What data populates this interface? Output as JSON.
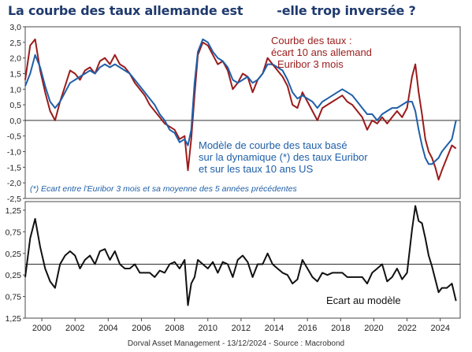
{
  "title": "La courbe des taux allemande est        -elle trop inversée ?",
  "footer": "Dorval Asset Management    -   13/12/2024   -   Source : Macrobond",
  "colors": {
    "curve": "#9b1b1b",
    "model": "#1f5fa8",
    "gap": "#111111",
    "frame": "#4a4a4a",
    "zero": "#111111",
    "grid": "#dddddd",
    "title": "#1f3a6d"
  },
  "chart_data": [
    {
      "type": "line",
      "ylim": [
        -2.5,
        3.0
      ],
      "yticks": [
        "3,0",
        "2,5",
        "2,0",
        "1,5",
        "1,0",
        "0,5",
        "0,0",
        "-0,5",
        "-1,0",
        "-1,5",
        "-2,0",
        "-2,5"
      ],
      "ytick_values": [
        3.0,
        2.5,
        2.0,
        1.5,
        1.0,
        0.5,
        0.0,
        -0.5,
        -1.0,
        -1.5,
        -2.0,
        -2.5
      ],
      "xlim": [
        1999.0,
        2025.2
      ],
      "annotations": {
        "curve_label": [
          "Courbe des taux :",
          "écart 10 ans allemand",
          "- Euribor 3 mois"
        ],
        "model_label": [
          "Modèle de courbe des taux basé",
          "sur la dynamique (*) des taux Euribor",
          "et sur les taux 10 ans US"
        ],
        "footnote": "(*) Ecart entre l'Euribor 3 mois et sa moyenne des 5 années précédentes"
      },
      "series": [
        {
          "name": "Courbe des taux : écart 10 ans allemand - Euribor 3 mois",
          "color": "#9b1b1b",
          "x": [
            1999.0,
            1999.3,
            1999.6,
            1999.9,
            2000.2,
            2000.5,
            2000.8,
            2001.1,
            2001.4,
            2001.7,
            2002.0,
            2002.3,
            2002.6,
            2002.9,
            2003.2,
            2003.5,
            2003.8,
            2004.1,
            2004.4,
            2004.7,
            2005.0,
            2005.3,
            2005.6,
            2005.9,
            2006.2,
            2006.5,
            2006.8,
            2007.1,
            2007.4,
            2007.7,
            2008.0,
            2008.3,
            2008.6,
            2008.8,
            2009.0,
            2009.2,
            2009.4,
            2009.7,
            2010.0,
            2010.3,
            2010.6,
            2010.9,
            2011.2,
            2011.5,
            2011.8,
            2012.1,
            2012.4,
            2012.7,
            2013.0,
            2013.3,
            2013.6,
            2013.9,
            2014.2,
            2014.5,
            2014.8,
            2015.1,
            2015.4,
            2015.7,
            2016.0,
            2016.3,
            2016.6,
            2016.9,
            2017.2,
            2017.5,
            2017.8,
            2018.1,
            2018.4,
            2018.7,
            2019.0,
            2019.3,
            2019.6,
            2019.9,
            2020.2,
            2020.5,
            2020.8,
            2021.1,
            2021.4,
            2021.7,
            2022.0,
            2022.3,
            2022.5,
            2022.7,
            2022.9,
            2023.1,
            2023.3,
            2023.5,
            2023.7,
            2023.9,
            2024.1,
            2024.4,
            2024.7,
            2024.95
          ],
          "y": [
            1.3,
            2.4,
            2.6,
            1.6,
            0.9,
            0.3,
            0.0,
            0.6,
            1.1,
            1.6,
            1.5,
            1.3,
            1.6,
            1.7,
            1.5,
            1.9,
            2.0,
            1.8,
            2.1,
            1.8,
            1.7,
            1.5,
            1.2,
            1.0,
            0.8,
            0.5,
            0.3,
            0.1,
            -0.1,
            -0.2,
            -0.3,
            -0.6,
            -0.5,
            -1.6,
            -0.6,
            0.8,
            2.1,
            2.5,
            2.4,
            2.1,
            1.8,
            1.9,
            1.6,
            1.0,
            1.2,
            1.5,
            1.4,
            0.9,
            1.3,
            1.5,
            2.0,
            1.8,
            1.6,
            1.4,
            1.1,
            0.5,
            0.4,
            0.9,
            0.6,
            0.3,
            0.0,
            0.4,
            0.5,
            0.6,
            0.7,
            0.8,
            0.6,
            0.5,
            0.3,
            0.1,
            -0.3,
            0.0,
            -0.1,
            0.1,
            -0.1,
            0.1,
            0.3,
            0.1,
            0.4,
            1.4,
            1.8,
            0.9,
            0.2,
            -0.6,
            -1.0,
            -1.2,
            -1.5,
            -1.9,
            -1.6,
            -1.2,
            -0.8,
            -0.9
          ]
        },
        {
          "name": "Modèle de courbe des taux basé sur la dynamique (*) des taux Euribor et sur les taux 10 ans US",
          "color": "#1f5fa8",
          "x": [
            1999.0,
            1999.3,
            1999.6,
            1999.9,
            2000.2,
            2000.5,
            2000.8,
            2001.1,
            2001.4,
            2001.7,
            2002.0,
            2002.3,
            2002.6,
            2002.9,
            2003.2,
            2003.5,
            2003.8,
            2004.1,
            2004.4,
            2004.7,
            2005.0,
            2005.3,
            2005.6,
            2005.9,
            2006.2,
            2006.5,
            2006.8,
            2007.1,
            2007.4,
            2007.7,
            2008.0,
            2008.3,
            2008.6,
            2008.8,
            2009.0,
            2009.2,
            2009.4,
            2009.7,
            2010.0,
            2010.3,
            2010.6,
            2010.9,
            2011.2,
            2011.5,
            2011.8,
            2012.1,
            2012.4,
            2012.7,
            2013.0,
            2013.3,
            2013.6,
            2013.9,
            2014.2,
            2014.5,
            2014.8,
            2015.1,
            2015.4,
            2015.7,
            2016.0,
            2016.3,
            2016.6,
            2016.9,
            2017.2,
            2017.5,
            2017.8,
            2018.1,
            2018.4,
            2018.7,
            2019.0,
            2019.3,
            2019.6,
            2019.9,
            2020.2,
            2020.5,
            2020.8,
            2021.1,
            2021.4,
            2021.7,
            2022.0,
            2022.3,
            2022.5,
            2022.7,
            2022.9,
            2023.1,
            2023.3,
            2023.5,
            2023.7,
            2023.9,
            2024.1,
            2024.4,
            2024.7,
            2024.95
          ],
          "y": [
            1.1,
            1.5,
            2.1,
            1.7,
            1.1,
            0.6,
            0.4,
            0.6,
            0.9,
            1.2,
            1.3,
            1.4,
            1.5,
            1.6,
            1.5,
            1.7,
            1.8,
            1.7,
            1.8,
            1.7,
            1.6,
            1.5,
            1.3,
            1.1,
            0.9,
            0.7,
            0.5,
            0.2,
            0.0,
            -0.3,
            -0.4,
            -0.7,
            -0.6,
            -0.8,
            -0.3,
            1.2,
            2.2,
            2.6,
            2.5,
            2.2,
            2.0,
            1.9,
            1.7,
            1.3,
            1.2,
            1.3,
            1.4,
            1.2,
            1.3,
            1.5,
            1.8,
            1.8,
            1.7,
            1.6,
            1.3,
            0.9,
            0.7,
            0.8,
            0.7,
            0.6,
            0.4,
            0.6,
            0.7,
            0.8,
            0.9,
            1.0,
            0.9,
            0.8,
            0.6,
            0.4,
            0.2,
            0.2,
            0.0,
            0.2,
            0.3,
            0.4,
            0.4,
            0.5,
            0.6,
            0.6,
            0.3,
            -0.3,
            -0.8,
            -1.2,
            -1.4,
            -1.4,
            -1.3,
            -1.2,
            -1.0,
            -0.8,
            -0.6,
            0.0
          ]
        }
      ]
    },
    {
      "type": "line",
      "ylim": [
        -1.25,
        1.45
      ],
      "yticks": [
        "1,25",
        "0,75",
        "0,25",
        "0,25",
        "0,75",
        "1,25"
      ],
      "ytick_values": [
        1.25,
        0.75,
        0.25,
        -0.25,
        -0.75,
        -1.25
      ],
      "xlim": [
        1999.0,
        2025.2
      ],
      "xticks": [
        "2000",
        "2002",
        "2004",
        "2006",
        "2008",
        "2010",
        "2012",
        "2014",
        "2016",
        "2018",
        "2020",
        "2022",
        "2024"
      ],
      "xtick_values": [
        2000,
        2002,
        2004,
        2006,
        2008,
        2010,
        2012,
        2014,
        2016,
        2018,
        2020,
        2022,
        2024
      ],
      "annotations": {
        "gap_label": "Ecart au modèle"
      },
      "series": [
        {
          "name": "Ecart au modèle",
          "color": "#111111",
          "x": [
            1999.0,
            1999.3,
            1999.6,
            1999.9,
            2000.2,
            2000.5,
            2000.8,
            2001.1,
            2001.4,
            2001.7,
            2002.0,
            2002.3,
            2002.6,
            2002.9,
            2003.2,
            2003.5,
            2003.8,
            2004.1,
            2004.4,
            2004.7,
            2005.0,
            2005.3,
            2005.6,
            2005.9,
            2006.2,
            2006.5,
            2006.8,
            2007.1,
            2007.4,
            2007.7,
            2008.0,
            2008.3,
            2008.6,
            2008.8,
            2009.0,
            2009.2,
            2009.4,
            2009.7,
            2010.0,
            2010.3,
            2010.6,
            2010.9,
            2011.2,
            2011.5,
            2011.8,
            2012.1,
            2012.4,
            2012.7,
            2013.0,
            2013.3,
            2013.6,
            2013.9,
            2014.2,
            2014.5,
            2014.8,
            2015.1,
            2015.4,
            2015.7,
            2016.0,
            2016.3,
            2016.6,
            2016.9,
            2017.2,
            2017.5,
            2017.8,
            2018.1,
            2018.4,
            2018.7,
            2019.0,
            2019.3,
            2019.6,
            2019.9,
            2020.2,
            2020.5,
            2020.8,
            2021.1,
            2021.4,
            2021.7,
            2022.0,
            2022.3,
            2022.5,
            2022.7,
            2022.9,
            2023.1,
            2023.3,
            2023.5,
            2023.7,
            2023.9,
            2024.1,
            2024.4,
            2024.7,
            2024.95
          ],
          "y": [
            -0.3,
            0.6,
            1.05,
            0.4,
            -0.1,
            -0.4,
            -0.55,
            0.0,
            0.2,
            0.3,
            0.2,
            -0.1,
            0.1,
            0.2,
            0.0,
            0.3,
            0.35,
            0.1,
            0.3,
            0.0,
            -0.1,
            -0.1,
            0.0,
            -0.2,
            -0.2,
            -0.2,
            -0.3,
            -0.15,
            -0.2,
            0.0,
            0.05,
            -0.1,
            0.1,
            -0.95,
            -0.45,
            -0.3,
            0.1,
            0.0,
            -0.1,
            0.05,
            -0.2,
            0.05,
            0.0,
            -0.3,
            0.1,
            0.2,
            0.05,
            -0.3,
            0.0,
            0.0,
            0.25,
            0.0,
            -0.1,
            -0.2,
            -0.25,
            -0.45,
            -0.35,
            0.1,
            -0.1,
            -0.3,
            -0.4,
            -0.2,
            -0.25,
            -0.2,
            -0.2,
            -0.2,
            -0.3,
            -0.3,
            -0.3,
            -0.3,
            -0.45,
            -0.2,
            -0.1,
            0.0,
            -0.4,
            -0.3,
            -0.1,
            -0.35,
            -0.2,
            0.8,
            1.35,
            1.0,
            0.95,
            0.6,
            0.2,
            -0.05,
            -0.35,
            -0.65,
            -0.55,
            -0.55,
            -0.45,
            -0.85
          ]
        }
      ]
    }
  ]
}
